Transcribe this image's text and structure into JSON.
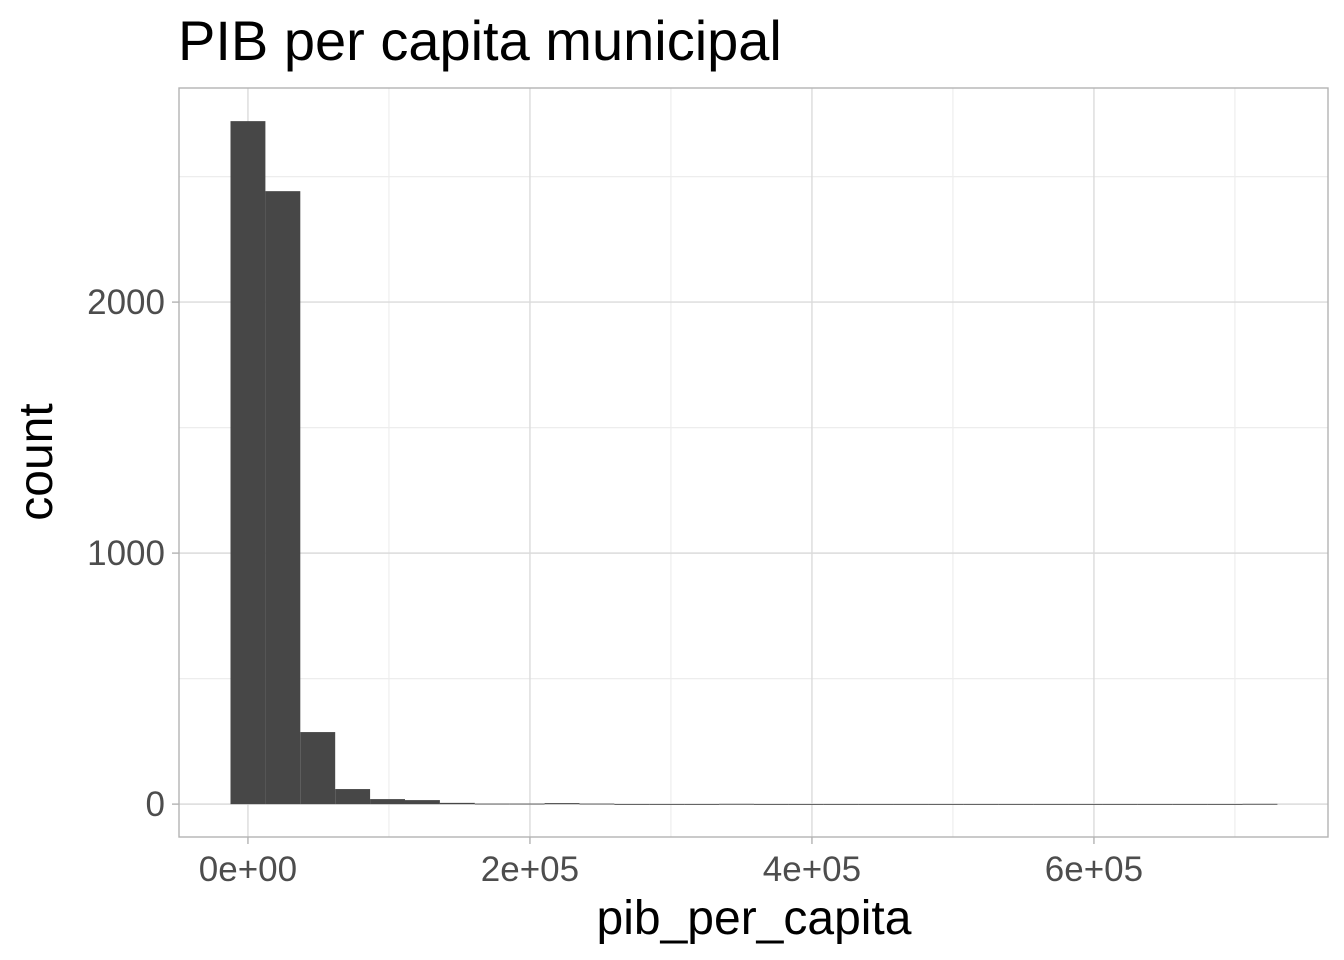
{
  "chart_data": {
    "type": "histogram",
    "title": "PIB per capita municipal",
    "x_label": "pib_per_capita",
    "y_label": "count",
    "bins": [
      -12375,
      12375,
      37125,
      61875,
      86625,
      111375,
      136125,
      160875,
      185625,
      210375,
      235125,
      259875,
      284625,
      309375,
      334125,
      358875,
      383625,
      408375,
      433125,
      457875,
      482625,
      507375,
      532125,
      556875,
      581625,
      606375,
      631125,
      655875,
      680625,
      705375,
      730125
    ],
    "values": [
      2721,
      2442,
      287,
      60,
      20,
      16,
      5,
      2,
      2,
      4,
      2,
      0,
      0,
      0,
      1,
      0,
      0,
      0,
      0,
      0,
      0,
      0,
      0,
      0,
      0,
      0,
      0,
      0,
      0,
      1
    ],
    "color": "#474747",
    "xlim": [
      -48900,
      766000
    ],
    "ylim": [
      -131,
      2853
    ],
    "xticks": [
      {
        "value": 0,
        "label": "0e+00"
      },
      {
        "value": 200000,
        "label": "2e+05"
      },
      {
        "value": 400000,
        "label": "4e+05"
      },
      {
        "value": 600000,
        "label": "6e+05"
      }
    ],
    "yticks": [
      0,
      1000,
      2000
    ],
    "x_minor_grid": [
      100000,
      300000,
      500000,
      700000
    ],
    "y_minor_grid": [
      500,
      1500,
      2500
    ],
    "grid": true
  }
}
